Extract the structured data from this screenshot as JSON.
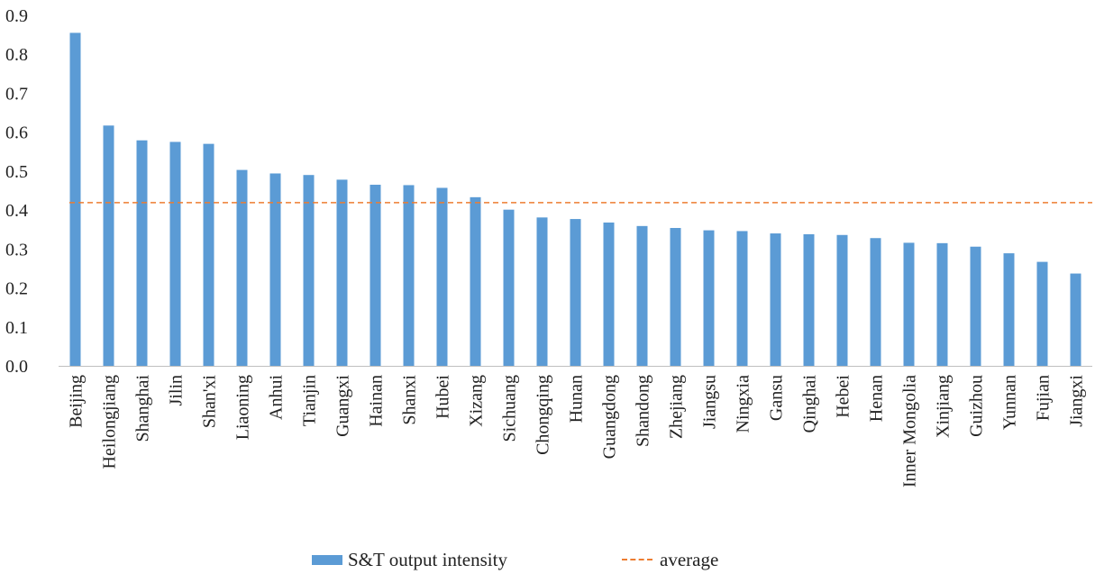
{
  "chart_data": {
    "type": "bar",
    "title": "",
    "xlabel": "",
    "ylabel": "",
    "ylim": [
      0,
      0.9
    ],
    "yticks": [
      "0.0",
      "0.1",
      "0.2",
      "0.3",
      "0.4",
      "0.5",
      "0.6",
      "0.7",
      "0.8",
      "0.9"
    ],
    "grid": false,
    "legend_position": "bottom",
    "categories": [
      "Beijing",
      "Heilongjiang",
      "Shanghai",
      "Jilin",
      "Shan'xi",
      "Liaoning",
      "Anhui",
      "Tianjin",
      "Guangxi",
      "Hainan",
      "Shanxi",
      "Hubei",
      "Xizang",
      "Sichuang",
      "Chongqing",
      "Hunan",
      "Guangdong",
      "Shandong",
      "Zhejiang",
      "Jiangsu",
      "Ningxia",
      "Gansu",
      "Qinghai",
      "Hebei",
      "Henan",
      "Inner Mongolia",
      "Xinjiang",
      "Guizhou",
      "Yunnan",
      "Fujian",
      "Jiangxi"
    ],
    "series": [
      {
        "name": "S&T output intensity",
        "type": "bar",
        "color": "#5b9bd5",
        "values": [
          0.855,
          0.617,
          0.579,
          0.575,
          0.57,
          0.503,
          0.494,
          0.49,
          0.478,
          0.465,
          0.464,
          0.457,
          0.433,
          0.401,
          0.381,
          0.377,
          0.368,
          0.359,
          0.354,
          0.348,
          0.346,
          0.34,
          0.338,
          0.336,
          0.328,
          0.316,
          0.315,
          0.306,
          0.289,
          0.267,
          0.237
        ]
      },
      {
        "name": "average",
        "type": "line",
        "style": "dashed",
        "color": "#ed7d31",
        "value": 0.419
      }
    ]
  }
}
